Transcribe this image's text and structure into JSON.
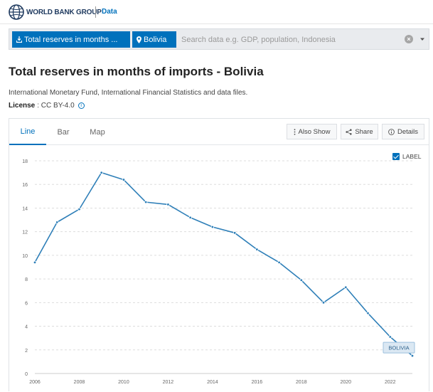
{
  "header": {
    "logo_text": "WORLD BANK GROUP",
    "data_link": "Data"
  },
  "search": {
    "indicator_chip": "Total reserves in months ...",
    "country_chip": "Bolivia",
    "placeholder": "Search data e.g. GDP, population, Indonesia",
    "clear_label": "×"
  },
  "page": {
    "title": "Total reserves in months of imports - Bolivia",
    "source": "International Monetary Fund, International Financial Statistics and data files.",
    "license_label": "License",
    "license_value": ": CC BY-4.0"
  },
  "tabs": {
    "line": "Line",
    "bar": "Bar",
    "map": "Map"
  },
  "actions": {
    "also_show": "Also Show",
    "share": "Share",
    "details": "Details"
  },
  "label_toggle": "LABEL",
  "colors": {
    "accent": "#0071bc",
    "series": "#2e7fb8"
  },
  "chart_data": {
    "type": "line",
    "x": [
      2006,
      2007,
      2008,
      2009,
      2010,
      2011,
      2012,
      2013,
      2014,
      2015,
      2016,
      2017,
      2018,
      2019,
      2020,
      2021,
      2022,
      2023
    ],
    "series": [
      {
        "name": "BOLIVIA",
        "values": [
          9.4,
          12.8,
          13.9,
          17.0,
          16.4,
          14.5,
          14.3,
          13.2,
          12.4,
          11.9,
          10.5,
          9.4,
          7.9,
          6.0,
          7.3,
          5.1,
          3.1,
          1.5
        ]
      }
    ],
    "x_ticks": [
      "2006",
      "2008",
      "2010",
      "2012",
      "2014",
      "2016",
      "2018",
      "2020",
      "2022"
    ],
    "y_ticks": [
      "0",
      "2",
      "4",
      "6",
      "8",
      "10",
      "12",
      "14",
      "16",
      "18"
    ],
    "xlim": [
      2006,
      2023
    ],
    "ylim": [
      0,
      18
    ],
    "grid": "horizontal dashed"
  }
}
